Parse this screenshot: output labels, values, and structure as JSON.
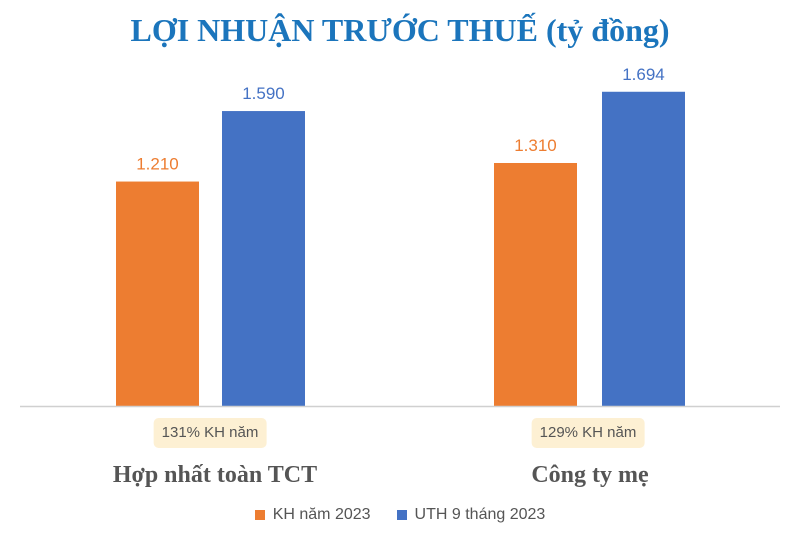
{
  "chart_data": {
    "type": "bar",
    "title": "LỢI NHUẬN TRƯỚC THUẾ (tỷ đồng)",
    "categories": [
      "Hợp nhất toàn TCT",
      "Công ty mẹ"
    ],
    "series": [
      {
        "name": "KH năm 2023",
        "values": [
          1210,
          1310
        ],
        "labels": [
          "1.210",
          "1.310"
        ],
        "color": "#ed7d31"
      },
      {
        "name": "UTH 9 tháng 2023",
        "values": [
          1590,
          1694
        ],
        "labels": [
          "1.590",
          "1.694"
        ],
        "color": "#4472c4"
      }
    ],
    "annotations": [
      "131% KH năm",
      "129% KH năm"
    ],
    "ylim": [
      0,
      2000
    ],
    "grid": false,
    "legend": "bottom"
  }
}
